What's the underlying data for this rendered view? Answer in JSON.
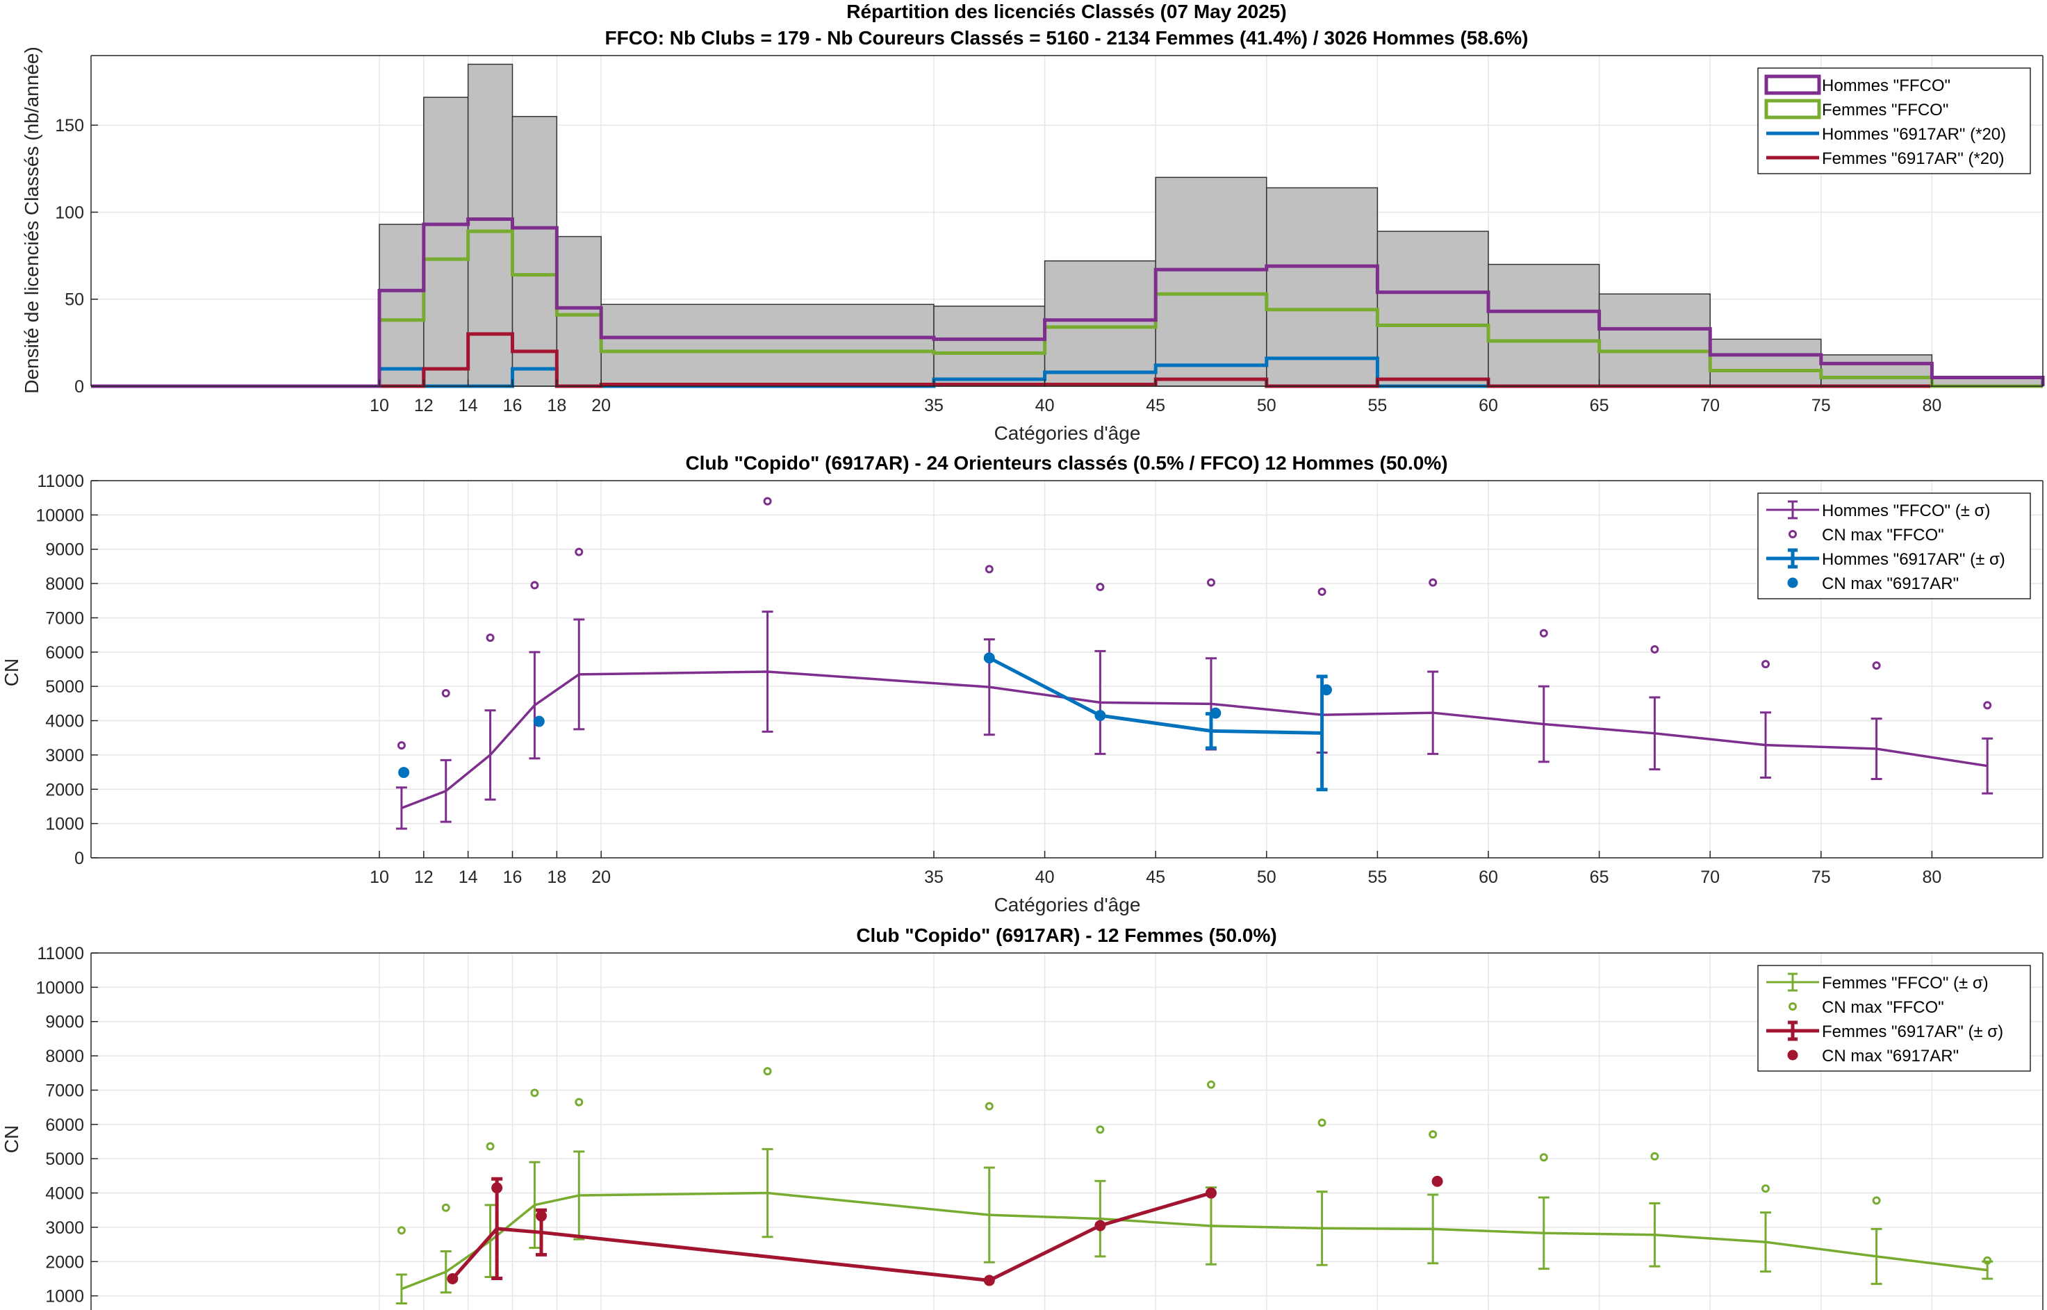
{
  "chart_data": [
    {
      "type": "bar",
      "title": "Répartition des licenciés Classés (07 May 2025)",
      "subtitle": "FFCO: Nb Clubs = 179   -   Nb Coureurs Classés = 5160   -   2134 Femmes (41.4%) / 3026 Hommes (58.6%)",
      "xlabel": "Catégories d'âge",
      "ylabel": "Densité de licenciés Classés (nb/année)",
      "xlim": [
        -3,
        85
      ],
      "ylim": [
        0,
        190
      ],
      "xticks": [
        10,
        12,
        14,
        16,
        18,
        20,
        35,
        40,
        45,
        50,
        55,
        60,
        65,
        70,
        75,
        80
      ],
      "yticks": [
        0,
        50,
        100,
        150
      ],
      "grid": true,
      "legend_position": "top-right",
      "bin_edges": [
        10,
        12,
        14,
        16,
        18,
        20,
        35,
        40,
        45,
        50,
        55,
        60,
        65,
        70,
        75,
        80
      ],
      "total_values": [
        93,
        166,
        185,
        155,
        86,
        47,
        46,
        72,
        120,
        114,
        89,
        70,
        53,
        27,
        18,
        5
      ],
      "series": [
        {
          "name": "Hommes \"FFCO\"",
          "color": "#7e2f8e",
          "values": [
            55,
            93,
            96,
            91,
            45,
            28,
            27,
            38,
            67,
            69,
            54,
            43,
            33,
            18,
            13,
            5
          ]
        },
        {
          "name": "Femmes \"FFCO\"",
          "color": "#77ac30",
          "values": [
            38,
            73,
            89,
            64,
            41,
            20,
            19,
            34,
            53,
            44,
            35,
            26,
            20,
            9,
            5,
            0
          ]
        },
        {
          "name": "Hommes \"6917AR\" (*20)",
          "color": "#0072bd",
          "values": [
            10,
            0,
            0,
            10,
            0,
            0,
            4,
            8,
            12,
            16,
            0,
            0,
            0,
            0,
            0,
            0
          ]
        },
        {
          "name": "Femmes \"6917AR\" (*20)",
          "color": "#a2142f",
          "values": [
            0,
            10,
            30,
            20,
            0,
            1,
            1,
            1,
            4,
            0,
            4,
            0,
            0,
            0,
            0,
            0
          ]
        }
      ]
    },
    {
      "type": "line",
      "title": "Club \"Copido\" (6917AR)  -  24 Orienteurs classés (0.5% / FFCO)  12 Hommes (50.0%)",
      "xlabel": "Catégories d'âge",
      "ylabel": "CN",
      "xlim": [
        -3,
        85
      ],
      "ylim": [
        0,
        11000
      ],
      "xticks": [
        10,
        12,
        14,
        16,
        18,
        20,
        35,
        40,
        45,
        50,
        55,
        60,
        65,
        70,
        75,
        80
      ],
      "yticks": [
        0,
        1000,
        2000,
        3000,
        4000,
        5000,
        6000,
        7000,
        8000,
        9000,
        10000,
        11000
      ],
      "grid": true,
      "legend_position": "top-right",
      "series": [
        {
          "name": "Hommes \"FFCO\" (± σ)",
          "color": "#7e2f8e",
          "x": [
            11,
            13,
            15,
            17,
            19,
            27.5,
            37.5,
            42.5,
            47.5,
            52.5,
            57.5,
            62.5,
            67.5,
            72.5,
            77.5,
            82.5
          ],
          "y": [
            1450,
            1950,
            3000,
            4450,
            5350,
            5430,
            4980,
            4530,
            4490,
            4170,
            4230,
            3900,
            3630,
            3290,
            3180,
            2680
          ],
          "err": [
            600,
            900,
            1300,
            1550,
            1600,
            1750,
            1390,
            1500,
            1330,
            1100,
            1200,
            1100,
            1050,
            950,
            880,
            800
          ]
        },
        {
          "name": "CN max \"FFCO\"",
          "color": "#7e2f8e",
          "x": [
            11,
            13,
            15,
            17,
            19,
            27.5,
            37.5,
            42.5,
            47.5,
            52.5,
            57.5,
            62.5,
            67.5,
            72.5,
            77.5,
            82.5
          ],
          "y": [
            3280,
            4800,
            6420,
            7950,
            8920,
            10400,
            8420,
            7900,
            8030,
            7760,
            8030,
            6550,
            6080,
            5650,
            5610,
            4450
          ]
        },
        {
          "name": "Hommes \"6917AR\" (± σ)",
          "color": "#0072bd",
          "x": [
            37.5,
            42.5,
            47.5,
            52.5
          ],
          "y": [
            5830,
            4150,
            3700,
            3640
          ],
          "err": [
            0,
            0,
            500,
            1650
          ]
        },
        {
          "name": "CN max \"6917AR\"",
          "color": "#0072bd",
          "x": [
            11.1,
            17.2,
            37.5,
            42.5,
            47.7,
            52.7
          ],
          "y": [
            2490,
            3980,
            5830,
            4150,
            4220,
            4900
          ]
        }
      ]
    },
    {
      "type": "line",
      "title": "Club \"Copido\" (6917AR)  -  12 Femmes (50.0%)",
      "ylabel": "CN",
      "xlim": [
        -3,
        85
      ],
      "ylim": [
        0,
        11000
      ],
      "yticks": [
        1000,
        2000,
        3000,
        4000,
        5000,
        6000,
        7000,
        8000,
        9000,
        10000,
        11000
      ],
      "grid": true,
      "legend_position": "top-right",
      "series": [
        {
          "name": "Femmes \"FFCO\" (± σ)",
          "color": "#77ac30",
          "x": [
            11,
            13,
            15,
            17,
            19,
            27.5,
            37.5,
            42.5,
            47.5,
            52.5,
            57.5,
            62.5,
            67.5,
            72.5,
            77.5,
            82.5
          ],
          "y": [
            1200,
            1700,
            2600,
            3650,
            3930,
            4000,
            3360,
            3250,
            3040,
            2970,
            2950,
            2830,
            2780,
            2570,
            2150,
            1750
          ],
          "err": [
            420,
            600,
            1050,
            1250,
            1280,
            1280,
            1380,
            1100,
            1120,
            1070,
            1000,
            1040,
            920,
            860,
            800,
            250
          ]
        },
        {
          "name": "CN max \"FFCO\"",
          "color": "#77ac30",
          "x": [
            11,
            13,
            15,
            17,
            19,
            27.5,
            37.5,
            42.5,
            47.5,
            52.5,
            57.5,
            62.5,
            67.5,
            72.5,
            77.5,
            82.5
          ],
          "y": [
            2910,
            3570,
            5360,
            6920,
            6650,
            7550,
            6530,
            5850,
            7160,
            6050,
            5710,
            5040,
            5070,
            4130,
            3780,
            2030
          ]
        },
        {
          "name": "Femmes \"6917AR\" (± σ)",
          "color": "#a2142f",
          "x": [
            13.3,
            15.3,
            17.3,
            37.5,
            42.5,
            47.5
          ],
          "y": [
            1500,
            2960,
            2850,
            1450,
            3050,
            4000
          ],
          "err": [
            0,
            1450,
            650,
            0,
            0,
            0
          ]
        },
        {
          "name": "CN max \"6917AR\"",
          "color": "#a2142f",
          "x": [
            13.3,
            15.3,
            17.3,
            37.5,
            42.5,
            47.5,
            57.7
          ],
          "y": [
            1500,
            4150,
            3330,
            1450,
            3050,
            4000,
            4340
          ]
        }
      ]
    }
  ]
}
